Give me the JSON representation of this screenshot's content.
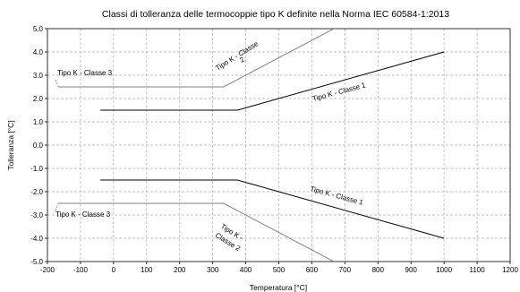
{
  "chart_data": {
    "type": "line",
    "title": "Classi di tolleranza delle termocoppie tipo K definite nella Norma IEC 60584-1:2013",
    "xlabel": "Temperatura [°C]",
    "ylabel": "Tolleranza [°C]",
    "xlim": [
      -200,
      1200
    ],
    "ylim": [
      -5,
      5
    ],
    "x_ticks": [
      -200,
      -100,
      0,
      100,
      200,
      300,
      400,
      500,
      600,
      700,
      800,
      900,
      1000,
      1100,
      1200
    ],
    "y_ticks": [
      5,
      4,
      3,
      2,
      1,
      0,
      -1,
      -2,
      -3,
      -4,
      -5
    ],
    "x_tick_labels": [
      "-200",
      "-100",
      "0",
      "100",
      "200",
      "300",
      "400",
      "500",
      "600",
      "700",
      "800",
      "900",
      "1000",
      "1100",
      "1200"
    ],
    "y_tick_labels": [
      "5.0",
      "4.0",
      "3.0",
      "2.0",
      "1.0",
      "0.0",
      "-1.0",
      "-2.0",
      "-3.0",
      "-4.0",
      "-5.0"
    ],
    "grid": true,
    "series": [
      {
        "name": "Tipo K - Classe 1",
        "color": "#000000",
        "points_upper": [
          [
            -40,
            1.5
          ],
          [
            375,
            1.5
          ],
          [
            1000,
            4.0
          ]
        ],
        "points_lower": [
          [
            -40,
            -1.5
          ],
          [
            375,
            -1.5
          ],
          [
            1000,
            -4.0
          ]
        ]
      },
      {
        "name": "Tipo K - Classe 2",
        "color": "#808080",
        "points_upper": [
          [
            -40,
            2.5
          ],
          [
            333,
            2.5
          ],
          [
            680,
            5.1
          ]
        ],
        "points_lower": [
          [
            -40,
            -2.5
          ],
          [
            333,
            -2.5
          ],
          [
            680,
            -5.1
          ]
        ]
      },
      {
        "name": "Tipo K - Classe 3",
        "color": "#808080",
        "points_upper": [
          [
            -167,
            2.5
          ],
          [
            40,
            2.5
          ]
        ],
        "points_lower": [
          [
            -167,
            -2.5
          ],
          [
            40,
            -2.5
          ]
        ]
      }
    ],
    "annotations": [
      {
        "text": "Tipo K - Classe 3",
        "color": "#000000"
      },
      {
        "text": "Tipo K - Classe 3",
        "color": "#000000"
      },
      {
        "text": "Tipo K - Classe 1",
        "color": "#000000"
      },
      {
        "text": "Tipo K - Classe 1",
        "color": "#000000"
      },
      {
        "text": "Tipo K - Classe",
        "color": "#000000"
      },
      {
        "text": "2",
        "color": "#000000"
      },
      {
        "text": "Tipo K -",
        "color": "#000000"
      },
      {
        "text": "Classe 2",
        "color": "#000000"
      }
    ]
  }
}
